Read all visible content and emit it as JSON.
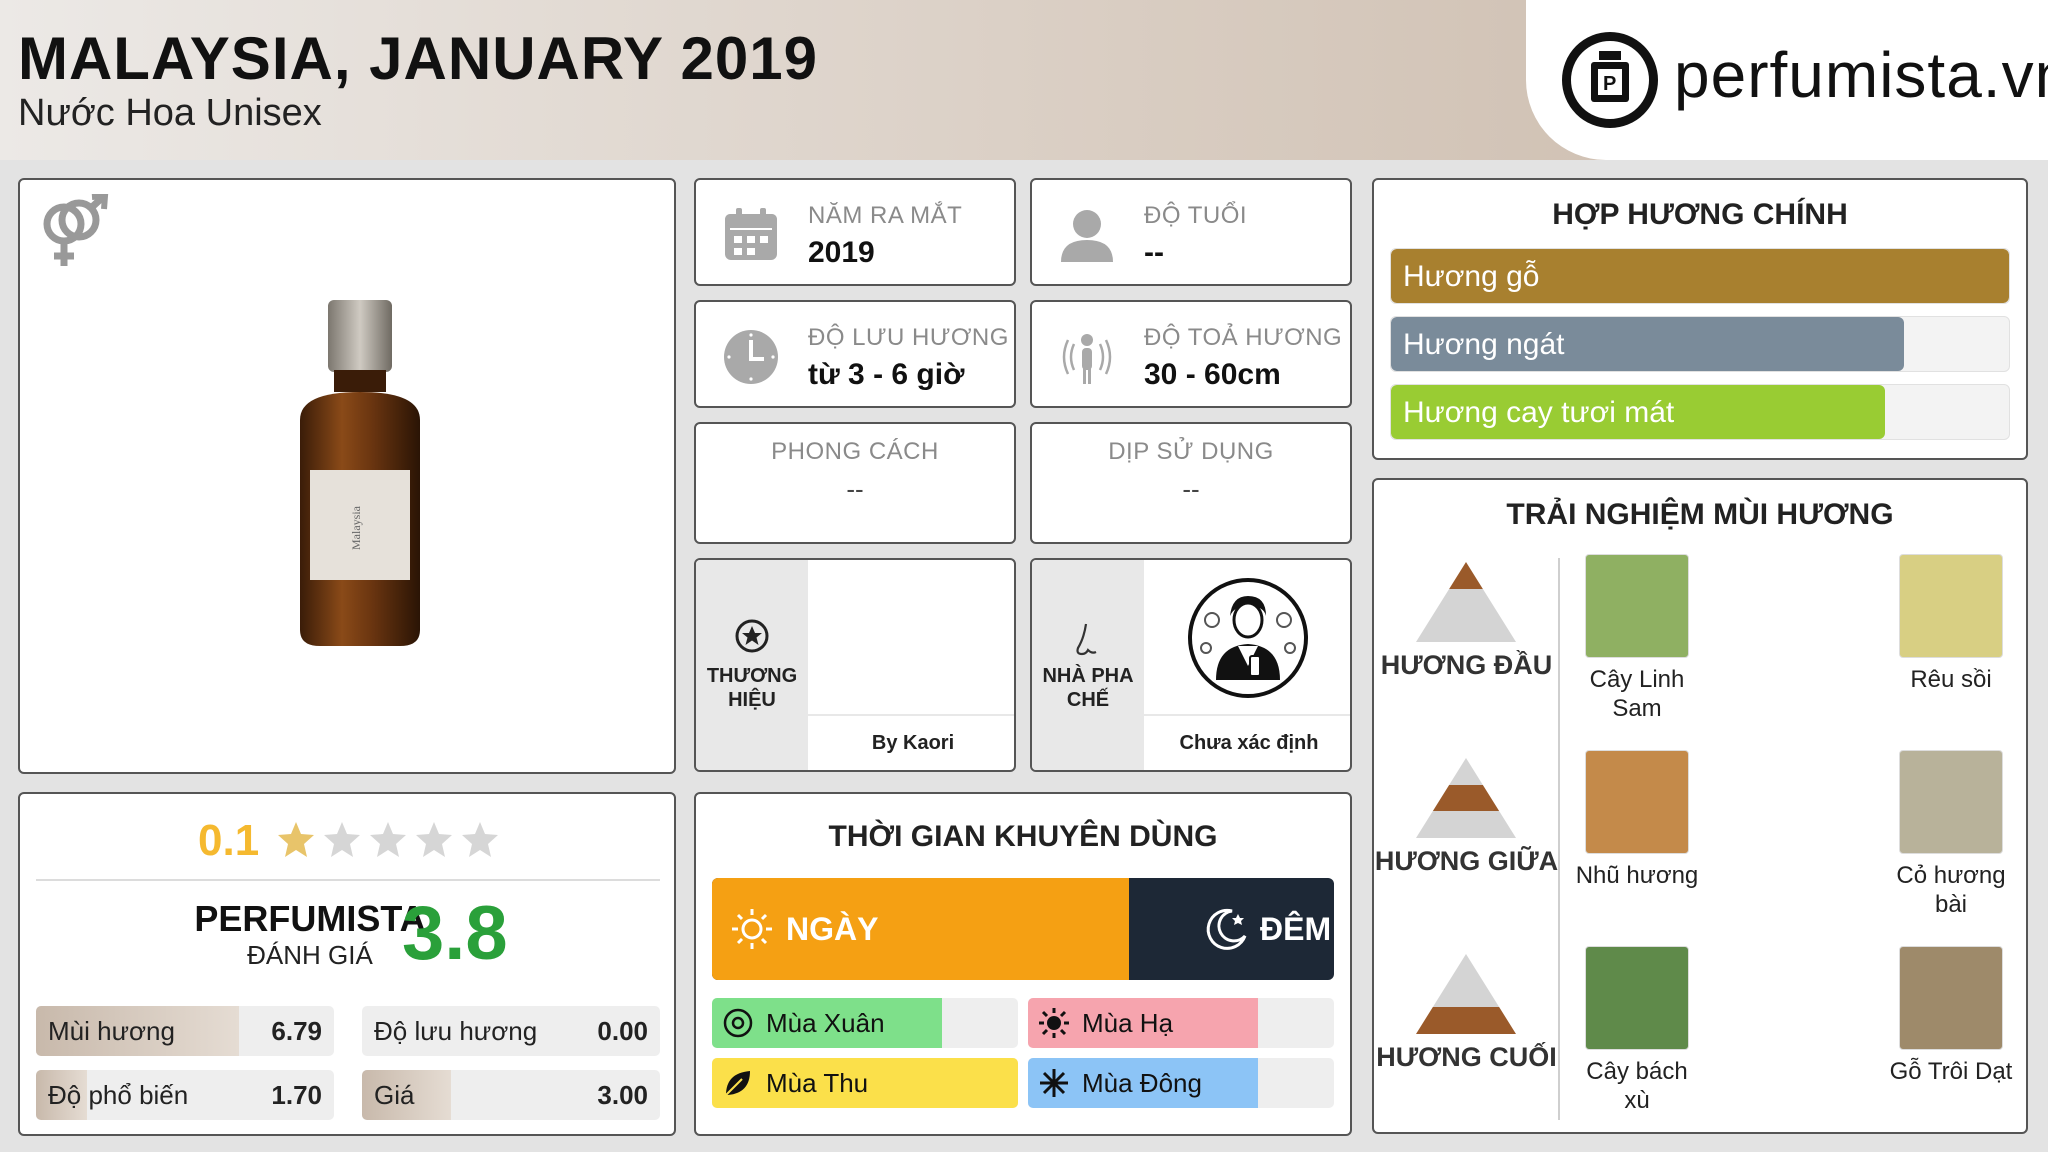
{
  "header": {
    "title": "MALAYSIA, JANUARY 2019",
    "subtitle": "Nước Hoa Unisex",
    "logo_text": "perfumista.vn"
  },
  "icons": {
    "gender": "unisex-gender-icon",
    "logo": "perfume-bottle-logo-icon"
  },
  "info": {
    "release": {
      "label": "NĂM RA MẮT",
      "value": "2019"
    },
    "age": {
      "label": "ĐỘ TUỔI",
      "value": "--"
    },
    "longevity": {
      "label": "ĐỘ LƯU HƯƠNG",
      "value": "từ 3 - 6 giờ"
    },
    "sillage": {
      "label": "ĐỘ TOẢ HƯƠNG",
      "value": "30 - 60cm"
    },
    "style": {
      "label": "PHONG CÁCH",
      "value": "--"
    },
    "occasion": {
      "label": "DỊP SỬ DỤNG",
      "value": "--"
    },
    "brand": {
      "label": "THƯƠNG HIỆU",
      "value": "By Kaori"
    },
    "perfumer": {
      "label": "NHÀ PHA CHẾ",
      "value": "Chưa xác định"
    }
  },
  "accords": {
    "title": "HỢP HƯƠNG CHÍNH",
    "items": [
      {
        "label": "Hương gỗ",
        "level": 1.0,
        "color": "#a8802f"
      },
      {
        "label": "Hương ngát",
        "level": 0.83,
        "color": "#7a8b9a"
      },
      {
        "label": "Hương cay tươi mát",
        "level": 0.8,
        "color": "#99cc33"
      }
    ]
  },
  "notes": {
    "title": "TRẢI NGHIỆM MÙI HƯƠNG",
    "tiers": [
      {
        "label": "HƯƠNG ĐẦU",
        "notes": [
          "Cây Linh Sam",
          "Rêu sồi"
        ]
      },
      {
        "label": "HƯƠNG GIỮA",
        "notes": [
          "Nhũ hương",
          "Cỏ hương bài"
        ]
      },
      {
        "label": "HƯƠNG CUỐI",
        "notes": [
          "Cây bách xù",
          "Gỗ Trôi Dạt"
        ]
      }
    ]
  },
  "rating": {
    "user_score": "0.1",
    "stars": 0.02,
    "perfumista_label": "PERFUMISTA",
    "perfumista_sub": "ĐÁNH GIÁ",
    "perfumista_score": "3.8",
    "subs": [
      {
        "label": "Mùi hương",
        "value": "6.79",
        "level": 0.68
      },
      {
        "label": "Độ lưu hương",
        "value": "0.00",
        "level": 0.0
      },
      {
        "label": "Độ phổ biến",
        "value": "1.70",
        "level": 0.17
      },
      {
        "label": "Giá",
        "value": "3.00",
        "level": 0.3
      }
    ]
  },
  "usage": {
    "title": "THỜI GIAN KHUYÊN DÙNG",
    "day_label": "NGÀY",
    "night_label": "ĐÊM",
    "day_ratio": 0.67,
    "seasons": [
      {
        "label": "Mùa Xuân",
        "level": 0.75,
        "color": "#7ee08a"
      },
      {
        "label": "Mùa Hạ",
        "level": 0.75,
        "color": "#f6a4ae"
      },
      {
        "label": "Mùa Thu",
        "level": 1.0,
        "color": "#fbe04a"
      },
      {
        "label": "Mùa Đông",
        "level": 0.75,
        "color": "#8cc4f6"
      }
    ]
  }
}
